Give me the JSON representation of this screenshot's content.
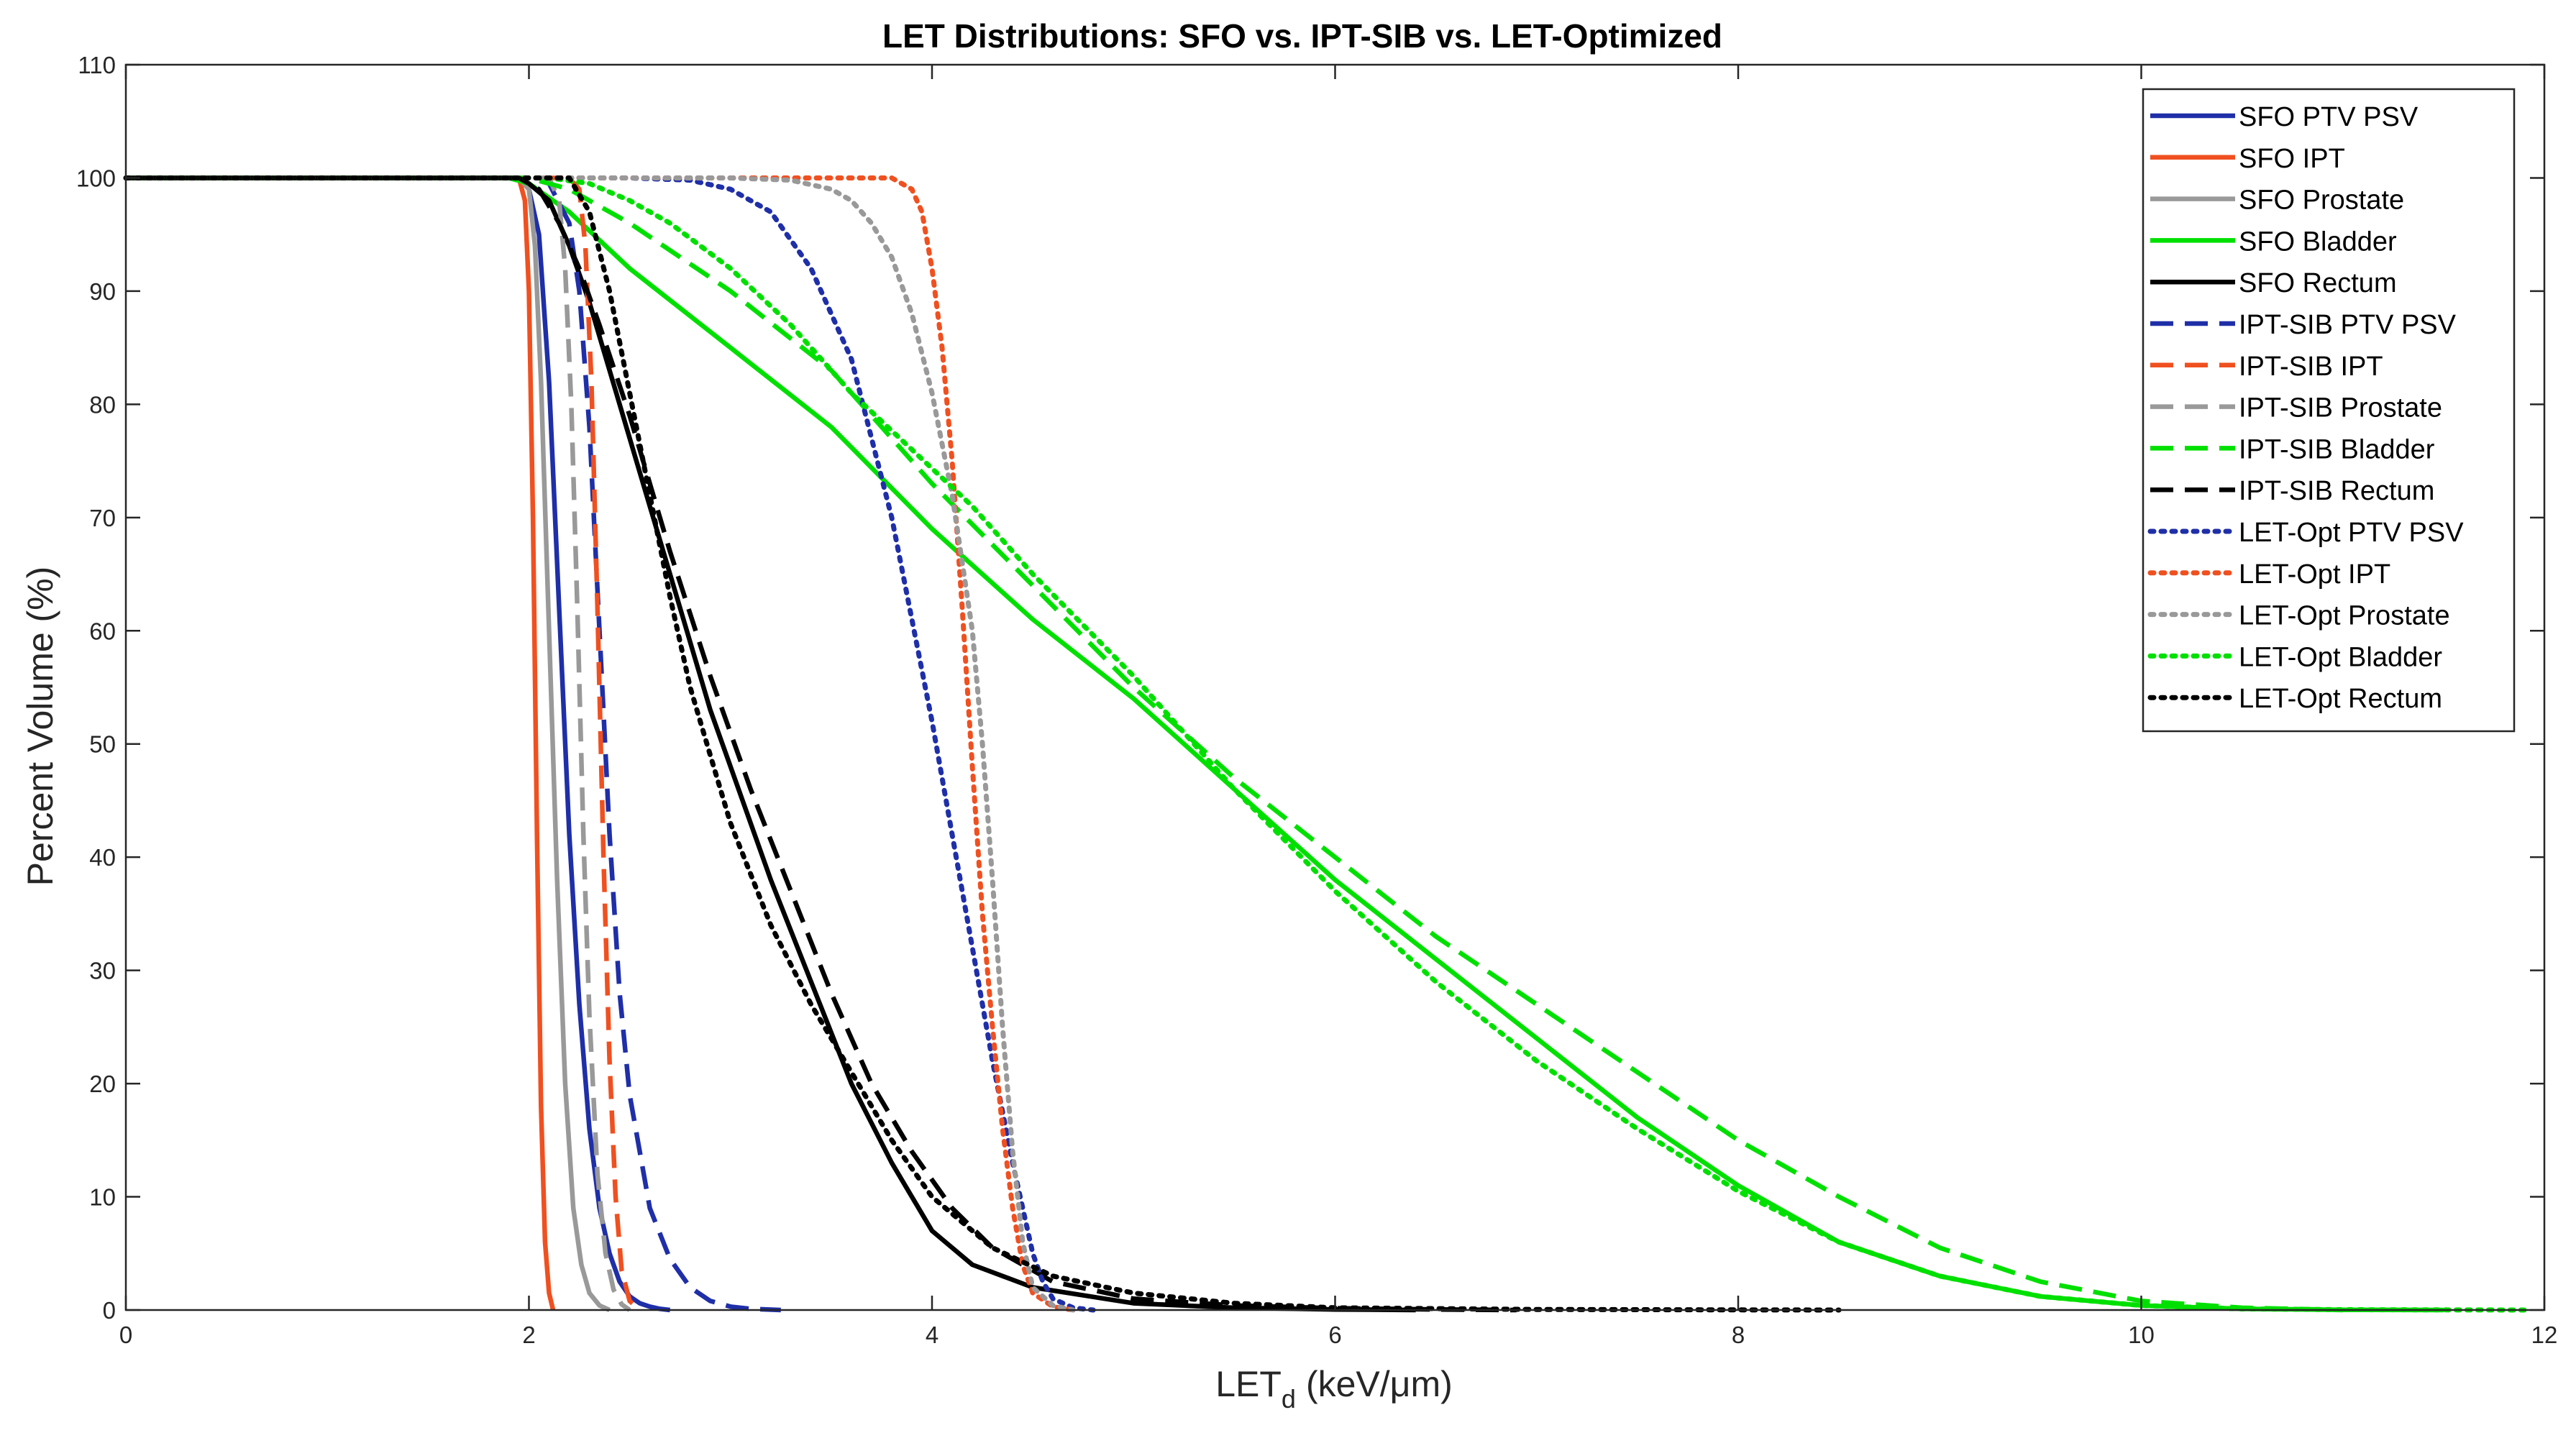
{
  "chart_data": {
    "type": "line",
    "title": "LET Distributions: SFO vs. IPT-SIB vs. LET-Optimized",
    "xlabel_main": "LET",
    "xlabel_sub": "d",
    "xlabel_unit": "(keV/μm)",
    "ylabel": "Percent Volume (%)",
    "xlim": [
      0,
      12
    ],
    "ylim": [
      0,
      110
    ],
    "xticks": [
      0,
      2,
      4,
      6,
      8,
      10,
      12
    ],
    "yticks": [
      0,
      10,
      20,
      30,
      40,
      50,
      60,
      70,
      80,
      90,
      100,
      110
    ],
    "grid": false,
    "legend_position": "top-right",
    "series": [
      {
        "name": "SFO PTV PSV",
        "color": "#1f2fa8",
        "style": "solid",
        "x": [
          0,
          1.95,
          2.0,
          2.05,
          2.1,
          2.15,
          2.2,
          2.25,
          2.3,
          2.35,
          2.4,
          2.45,
          2.5,
          2.55,
          2.6,
          2.65,
          2.7
        ],
        "y": [
          100,
          100,
          99,
          95,
          82,
          62,
          42,
          27,
          16,
          9,
          5,
          2.5,
          1.2,
          0.6,
          0.3,
          0.1,
          0
        ]
      },
      {
        "name": "SFO IPT",
        "color": "#f05020",
        "style": "solid",
        "x": [
          0,
          1.95,
          1.98,
          2.0,
          2.02,
          2.04,
          2.06,
          2.08,
          2.1,
          2.12
        ],
        "y": [
          100,
          100,
          98,
          90,
          70,
          42,
          18,
          6,
          1.5,
          0
        ]
      },
      {
        "name": "SFO Prostate",
        "color": "#999999",
        "style": "solid",
        "x": [
          0,
          1.95,
          2.0,
          2.03,
          2.06,
          2.1,
          2.14,
          2.18,
          2.22,
          2.26,
          2.3,
          2.35,
          2.4
        ],
        "y": [
          100,
          100,
          99,
          94,
          82,
          60,
          38,
          20,
          9,
          4,
          1.5,
          0.4,
          0
        ]
      },
      {
        "name": "SFO Bladder",
        "color": "#00e000",
        "style": "solid",
        "x": [
          0,
          1.9,
          2.0,
          2.2,
          2.5,
          3.0,
          3.5,
          4.0,
          4.5,
          5.0,
          5.5,
          6.0,
          6.5,
          7.0,
          7.5,
          8.0,
          8.5,
          9.0,
          9.5,
          10.0,
          10.5,
          11.0,
          11.5
        ],
        "y": [
          100,
          100,
          99.5,
          97,
          92,
          85,
          78,
          69,
          61,
          54,
          46,
          38,
          31,
          24,
          17,
          11,
          6,
          3,
          1.2,
          0.4,
          0.1,
          0.02,
          0
        ]
      },
      {
        "name": "SFO Rectum",
        "color": "#000000",
        "style": "solid",
        "x": [
          0,
          1.95,
          2.0,
          2.1,
          2.2,
          2.3,
          2.4,
          2.5,
          2.6,
          2.7,
          2.8,
          2.9,
          3.0,
          3.2,
          3.4,
          3.6,
          3.8,
          4.0,
          4.2,
          4.5,
          5.0,
          5.5,
          6.0,
          6.4
        ],
        "y": [
          100,
          100,
          99.5,
          98,
          94,
          89,
          83,
          77,
          71,
          65,
          59,
          53,
          48,
          38,
          29,
          20,
          13,
          7,
          4,
          2,
          0.6,
          0.2,
          0.05,
          0
        ]
      },
      {
        "name": "IPT-SIB PTV PSV",
        "color": "#1f2fa8",
        "style": "dashed",
        "x": [
          0,
          2.0,
          2.1,
          2.2,
          2.25,
          2.3,
          2.35,
          2.4,
          2.45,
          2.5,
          2.6,
          2.7,
          2.8,
          2.9,
          3.0,
          3.1,
          3.25
        ],
        "y": [
          100,
          100,
          99.5,
          96,
          90,
          78,
          60,
          42,
          28,
          19,
          9,
          4.5,
          2,
          0.8,
          0.3,
          0.1,
          0
        ]
      },
      {
        "name": "IPT-SIB IPT",
        "color": "#f05020",
        "style": "dashed",
        "x": [
          0,
          2.2,
          2.25,
          2.28,
          2.31,
          2.34,
          2.37,
          2.4,
          2.43,
          2.46,
          2.5,
          2.55
        ],
        "y": [
          100,
          100,
          99,
          94,
          82,
          62,
          40,
          22,
          10,
          3.5,
          0.8,
          0
        ]
      },
      {
        "name": "IPT-SIB Prostate",
        "color": "#999999",
        "style": "dashed",
        "x": [
          0,
          2.1,
          2.15,
          2.18,
          2.21,
          2.24,
          2.27,
          2.3,
          2.34,
          2.38,
          2.42,
          2.46,
          2.5
        ],
        "y": [
          100,
          100,
          98,
          92,
          80,
          62,
          42,
          26,
          12,
          5,
          1.8,
          0.5,
          0
        ]
      },
      {
        "name": "IPT-SIB Bladder",
        "color": "#00e000",
        "style": "dashed",
        "x": [
          0,
          2.0,
          2.2,
          2.5,
          3.0,
          3.5,
          4.0,
          4.5,
          5.0,
          5.5,
          6.0,
          6.5,
          7.0,
          7.5,
          8.0,
          8.5,
          9.0,
          9.5,
          10.0,
          10.5,
          11.0
        ],
        "y": [
          100,
          100,
          99,
          96,
          90,
          83,
          73,
          64,
          55,
          47,
          40,
          33,
          27,
          21,
          15,
          10,
          5.5,
          2.5,
          0.8,
          0.2,
          0
        ]
      },
      {
        "name": "IPT-SIB Rectum",
        "color": "#000000",
        "style": "dashed",
        "x": [
          0,
          1.95,
          2.05,
          2.15,
          2.25,
          2.35,
          2.5,
          2.7,
          2.9,
          3.1,
          3.3,
          3.5,
          3.7,
          3.9,
          4.1,
          4.3,
          4.6,
          5.0,
          5.5,
          6.0,
          6.5,
          6.9
        ],
        "y": [
          100,
          100,
          99,
          96,
          92,
          87,
          79,
          67,
          56,
          46,
          37,
          28,
          20,
          14,
          9,
          5.5,
          2.5,
          1,
          0.4,
          0.15,
          0.05,
          0
        ]
      },
      {
        "name": "LET-Opt PTV PSV",
        "color": "#1f2fa8",
        "style": "dotted",
        "x": [
          0,
          2.5,
          2.8,
          3.0,
          3.2,
          3.4,
          3.6,
          3.7,
          3.8,
          3.9,
          4.0,
          4.1,
          4.2,
          4.3,
          4.4,
          4.5,
          4.55,
          4.6,
          4.7,
          4.8
        ],
        "y": [
          100,
          100,
          99.8,
          99,
          97,
          92,
          84,
          77,
          70,
          61,
          52,
          42,
          32,
          22,
          13,
          5,
          2.5,
          1,
          0.2,
          0
        ]
      },
      {
        "name": "LET-Opt IPT",
        "color": "#f05020",
        "style": "dotted",
        "x": [
          0,
          3.5,
          3.8,
          3.9,
          3.95,
          4.0,
          4.05,
          4.1,
          4.15,
          4.2,
          4.25,
          4.3,
          4.35,
          4.4,
          4.45,
          4.5,
          4.6,
          4.7
        ],
        "y": [
          100,
          100,
          100,
          99,
          97,
          92,
          85,
          75,
          62,
          48,
          35,
          25,
          16,
          9,
          4,
          1.5,
          0.3,
          0
        ]
      },
      {
        "name": "LET-Opt Prostate",
        "color": "#999999",
        "style": "dotted",
        "x": [
          0,
          3.0,
          3.3,
          3.5,
          3.6,
          3.7,
          3.8,
          3.9,
          4.0,
          4.1,
          4.2,
          4.25,
          4.3,
          4.35,
          4.4,
          4.45,
          4.5,
          4.6,
          4.7
        ],
        "y": [
          100,
          100,
          99.8,
          99,
          98,
          96,
          93,
          88,
          81,
          72,
          60,
          50,
          38,
          25,
          14,
          6,
          2,
          0.4,
          0
        ]
      },
      {
        "name": "LET-Opt Bladder",
        "color": "#00e000",
        "style": "dotted",
        "x": [
          0,
          2.1,
          2.3,
          2.5,
          2.7,
          3.0,
          3.3,
          3.6,
          3.9,
          4.2,
          4.5,
          5.0,
          5.5,
          6.0,
          6.5,
          7.0,
          7.5,
          8.0,
          8.5,
          9.0,
          9.5,
          10.0,
          10.5,
          11.0,
          11.5,
          11.9
        ],
        "y": [
          100,
          100,
          99.5,
          98,
          96,
          92,
          87,
          81,
          76,
          71,
          65,
          56,
          46,
          37,
          29,
          22,
          16,
          10.5,
          6,
          3,
          1.2,
          0.4,
          0.1,
          0.03,
          0.01,
          0
        ]
      },
      {
        "name": "LET-Opt Rectum",
        "color": "#000000",
        "style": "dotted",
        "x": [
          0,
          2.2,
          2.3,
          2.4,
          2.5,
          2.6,
          2.7,
          2.8,
          2.9,
          3.0,
          3.2,
          3.4,
          3.6,
          3.8,
          4.0,
          4.3,
          4.6,
          5.0,
          5.5,
          6.0,
          7.0,
          8.0,
          8.5
        ],
        "y": [
          100,
          100,
          97,
          90,
          81,
          72,
          63,
          55,
          49,
          43,
          34,
          27,
          21,
          15,
          10,
          5.5,
          3,
          1.5,
          0.6,
          0.2,
          0.05,
          0.01,
          0
        ]
      }
    ]
  }
}
